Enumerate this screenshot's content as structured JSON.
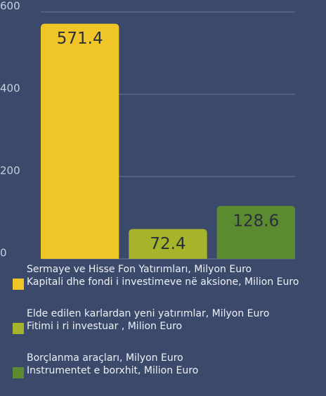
{
  "chart_data": {
    "type": "bar",
    "categories": [
      null
    ],
    "series": [
      {
        "name": "Sermaye ve Hisse Fon Yatırımları, Milyon Euro\nKapitali dhe fondi i investimeve në aksione, Milion Euro",
        "color": "#f0c528",
        "values": [
          571.4
        ]
      },
      {
        "name": "Elde edilen karlardan yeni yatırımlar, Milyon Euro\nFitimi i ri investuar , Milion Euro",
        "color": "#a6b42c",
        "values": [
          72.4
        ]
      },
      {
        "name": "Borçlanma araçları, Milyon Euro\nInstrumentet e borxhit, Milion Euro",
        "color": "#5c8a30",
        "values": [
          128.6
        ]
      }
    ],
    "ylim": [
      0,
      600
    ],
    "yticks": [
      0,
      200,
      400,
      600
    ],
    "grid": true
  }
}
